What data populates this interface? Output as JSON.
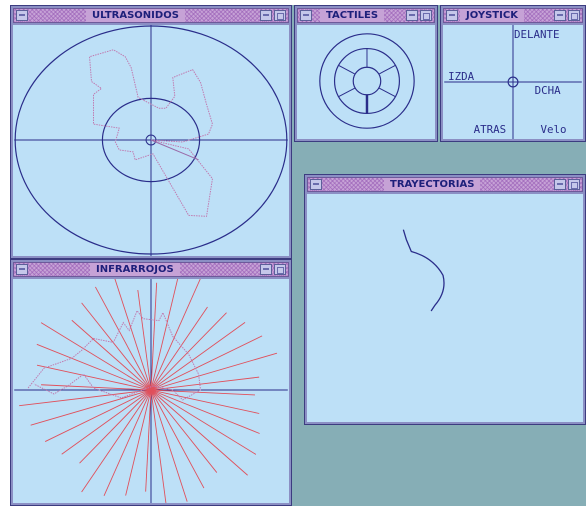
{
  "windows": {
    "ultrasonidos": {
      "title": "ULTRASONIDOS"
    },
    "tactiles": {
      "title": "TACTILES"
    },
    "joystick": {
      "title": "JOYSTICK",
      "labels": {
        "forward": "DELANTE",
        "left": "IZDA",
        "right": "DCHA",
        "back": "ATRAS",
        "speed": "Velo"
      }
    },
    "trayectorias": {
      "title": "TRAYECTORIAS"
    },
    "infrarrojos": {
      "title": "INFRARROJOS"
    }
  },
  "colors": {
    "desktop": "#86aeb6",
    "client_bg": "#bde0f7",
    "frame": "#8b8fc4",
    "title_text": "#1d1f7a",
    "axis": "#2a2d8a",
    "sensor_trace": "#c07ab0",
    "ir_rays": "#e0505c"
  },
  "icons": {
    "close": "window-menu-icon",
    "minimize": "minimize-icon",
    "maximize": "maximize-icon"
  }
}
